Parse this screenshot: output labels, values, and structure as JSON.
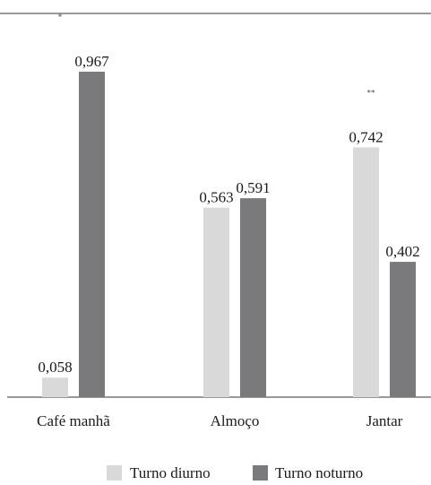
{
  "chart_data": {
    "type": "bar",
    "categories": [
      "Café manhã",
      "Almoço",
      "Jantar"
    ],
    "series": [
      {
        "name": "Turno diurno",
        "values": [
          0.058,
          0.563,
          0.742
        ],
        "color": "#d9d9d9"
      },
      {
        "name": "Turno noturno",
        "values": [
          0.967,
          0.591,
          0.402
        ],
        "color": "#7a7a7d"
      }
    ],
    "value_labels": [
      [
        "0,058",
        "0,563",
        "0,742"
      ],
      [
        "0,967",
        "0,591",
        "0,402"
      ]
    ],
    "significance_marks": [
      "*",
      "",
      "**"
    ],
    "ylim": [
      0,
      1.14
    ],
    "grid": false,
    "legend_position": "bottom-center"
  }
}
